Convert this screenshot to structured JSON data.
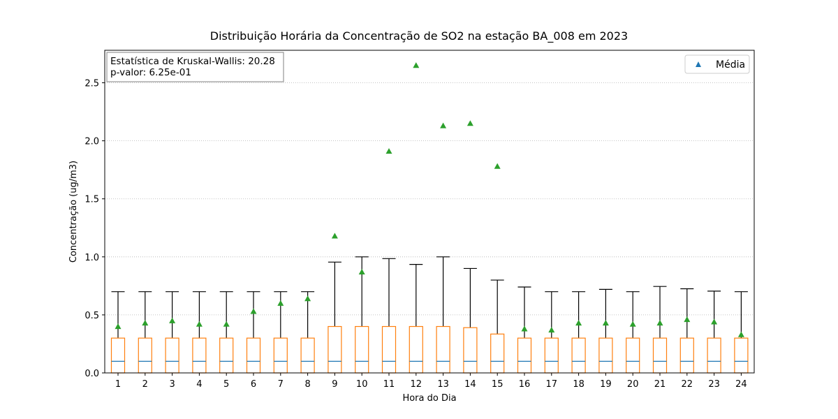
{
  "chart_data": {
    "type": "box",
    "title": "Distribuição Horária da Concentração de SO2 na estação BA_008 em 2023",
    "xlabel": "Hora do Dia",
    "ylabel": "Concentração (ug/m3)",
    "categories": [
      "1",
      "2",
      "3",
      "4",
      "5",
      "6",
      "7",
      "8",
      "9",
      "10",
      "11",
      "12",
      "13",
      "14",
      "15",
      "16",
      "17",
      "18",
      "19",
      "20",
      "21",
      "22",
      "23",
      "24"
    ],
    "ylim": [
      0,
      2.78
    ],
    "yticks": [
      "0.0",
      "0.5",
      "1.0",
      "1.5",
      "2.0",
      "2.5"
    ],
    "grid": "y-dotted",
    "annotation": {
      "line1": "Estatística de Kruskal-Wallis: 20.28",
      "line2": "p-valor: 6.25e-01"
    },
    "legend": {
      "position": "top-right",
      "label": "Média",
      "marker": "triangle"
    },
    "colors": {
      "box": "#ff7f0e",
      "median": "#1f77b4",
      "mean": "#2ca02c",
      "whisker": "#000000",
      "legend_marker": "#1f77b4"
    },
    "boxes": [
      {
        "q1": 0.0,
        "median": 0.1,
        "q3": 0.3,
        "whisker_low": 0.0,
        "whisker_high": 0.7,
        "mean": 0.4
      },
      {
        "q1": 0.0,
        "median": 0.1,
        "q3": 0.3,
        "whisker_low": 0.0,
        "whisker_high": 0.7,
        "mean": 0.43
      },
      {
        "q1": 0.0,
        "median": 0.1,
        "q3": 0.3,
        "whisker_low": 0.0,
        "whisker_high": 0.7,
        "mean": 0.45
      },
      {
        "q1": 0.0,
        "median": 0.1,
        "q3": 0.3,
        "whisker_low": 0.0,
        "whisker_high": 0.7,
        "mean": 0.42
      },
      {
        "q1": 0.0,
        "median": 0.1,
        "q3": 0.3,
        "whisker_low": 0.0,
        "whisker_high": 0.7,
        "mean": 0.42
      },
      {
        "q1": 0.0,
        "median": 0.1,
        "q3": 0.3,
        "whisker_low": 0.0,
        "whisker_high": 0.7,
        "mean": 0.53
      },
      {
        "q1": 0.0,
        "median": 0.1,
        "q3": 0.3,
        "whisker_low": 0.0,
        "whisker_high": 0.7,
        "mean": 0.6
      },
      {
        "q1": 0.0,
        "median": 0.1,
        "q3": 0.3,
        "whisker_low": 0.0,
        "whisker_high": 0.7,
        "mean": 0.64
      },
      {
        "q1": 0.0,
        "median": 0.1,
        "q3": 0.4,
        "whisker_low": 0.0,
        "whisker_high": 0.955,
        "mean": 1.18
      },
      {
        "q1": 0.0,
        "median": 0.1,
        "q3": 0.4,
        "whisker_low": 0.0,
        "whisker_high": 1.0,
        "mean": 0.87
      },
      {
        "q1": 0.0,
        "median": 0.1,
        "q3": 0.4,
        "whisker_low": 0.0,
        "whisker_high": 0.985,
        "mean": 1.91
      },
      {
        "q1": 0.0,
        "median": 0.1,
        "q3": 0.4,
        "whisker_low": 0.0,
        "whisker_high": 0.935,
        "mean": 2.65
      },
      {
        "q1": 0.0,
        "median": 0.1,
        "q3": 0.4,
        "whisker_low": 0.0,
        "whisker_high": 1.0,
        "mean": 2.13
      },
      {
        "q1": 0.0,
        "median": 0.1,
        "q3": 0.39,
        "whisker_low": 0.0,
        "whisker_high": 0.9,
        "mean": 2.15
      },
      {
        "q1": 0.0,
        "median": 0.1,
        "q3": 0.335,
        "whisker_low": 0.0,
        "whisker_high": 0.8,
        "mean": 1.78
      },
      {
        "q1": 0.0,
        "median": 0.1,
        "q3": 0.3,
        "whisker_low": 0.0,
        "whisker_high": 0.74,
        "mean": 0.38
      },
      {
        "q1": 0.0,
        "median": 0.1,
        "q3": 0.3,
        "whisker_low": 0.0,
        "whisker_high": 0.7,
        "mean": 0.37
      },
      {
        "q1": 0.0,
        "median": 0.1,
        "q3": 0.3,
        "whisker_low": 0.0,
        "whisker_high": 0.7,
        "mean": 0.43
      },
      {
        "q1": 0.0,
        "median": 0.1,
        "q3": 0.3,
        "whisker_low": 0.0,
        "whisker_high": 0.72,
        "mean": 0.43
      },
      {
        "q1": 0.0,
        "median": 0.1,
        "q3": 0.3,
        "whisker_low": 0.0,
        "whisker_high": 0.7,
        "mean": 0.42
      },
      {
        "q1": 0.0,
        "median": 0.1,
        "q3": 0.3,
        "whisker_low": 0.0,
        "whisker_high": 0.745,
        "mean": 0.43
      },
      {
        "q1": 0.0,
        "median": 0.1,
        "q3": 0.3,
        "whisker_low": 0.0,
        "whisker_high": 0.725,
        "mean": 0.46
      },
      {
        "q1": 0.0,
        "median": 0.1,
        "q3": 0.3,
        "whisker_low": 0.0,
        "whisker_high": 0.705,
        "mean": 0.44
      },
      {
        "q1": 0.0,
        "median": 0.1,
        "q3": 0.3,
        "whisker_low": 0.0,
        "whisker_high": 0.7,
        "mean": 0.33
      }
    ]
  }
}
